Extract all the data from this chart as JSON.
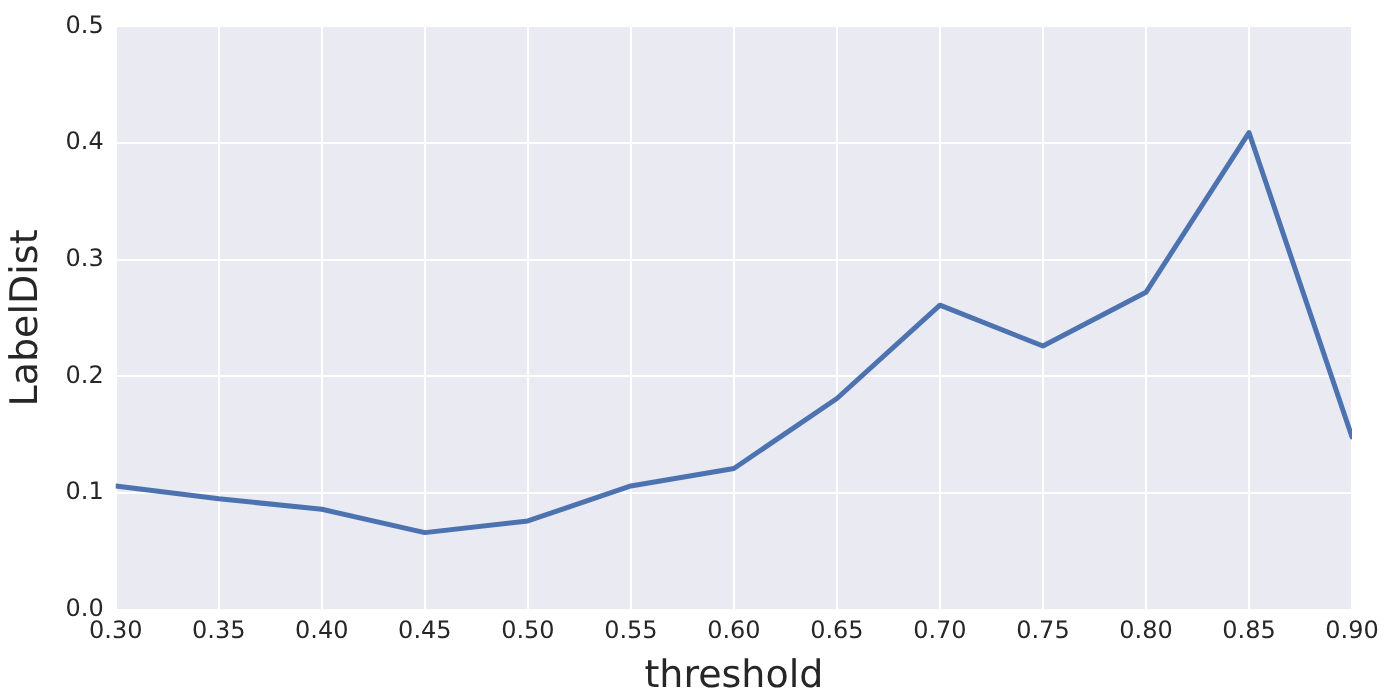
{
  "chart_data": {
    "type": "line",
    "xlabel": "threshold",
    "ylabel": "LabelDist",
    "x": [
      0.3,
      0.35,
      0.4,
      0.45,
      0.5,
      0.55,
      0.6,
      0.65,
      0.7,
      0.75,
      0.8,
      0.85,
      0.9
    ],
    "series": [
      {
        "color": "#4c72b0",
        "values": [
          0.106,
          0.095,
          0.086,
          0.066,
          0.076,
          0.106,
          0.121,
          0.181,
          0.261,
          0.226,
          0.272,
          0.409,
          0.148
        ]
      }
    ],
    "xlim": [
      0.3,
      0.9
    ],
    "xticks": [
      {
        "value": 0.3,
        "label": "0.30"
      },
      {
        "value": 0.35,
        "label": "0.35"
      },
      {
        "value": 0.4,
        "label": "0.40"
      },
      {
        "value": 0.45,
        "label": "0.45"
      },
      {
        "value": 0.5,
        "label": "0.50"
      },
      {
        "value": 0.55,
        "label": "0.55"
      },
      {
        "value": 0.6,
        "label": "0.60"
      },
      {
        "value": 0.65,
        "label": "0.65"
      },
      {
        "value": 0.7,
        "label": "0.70"
      },
      {
        "value": 0.75,
        "label": "0.75"
      },
      {
        "value": 0.8,
        "label": "0.80"
      },
      {
        "value": 0.85,
        "label": "0.85"
      },
      {
        "value": 0.9,
        "label": "0.90"
      }
    ],
    "ylim": [
      0,
      0.5
    ],
    "yticks": [
      {
        "value": 0,
        "label": "0.0"
      },
      {
        "value": 0.1,
        "label": "0.1"
      },
      {
        "value": 0.2,
        "label": "0.2"
      },
      {
        "value": 0.3,
        "label": "0.3"
      },
      {
        "value": 0.4,
        "label": "0.4"
      },
      {
        "value": 0.5,
        "label": "0.5"
      }
    ],
    "grid": true,
    "legend": false,
    "marker": "none",
    "line_style": "solid"
  }
}
